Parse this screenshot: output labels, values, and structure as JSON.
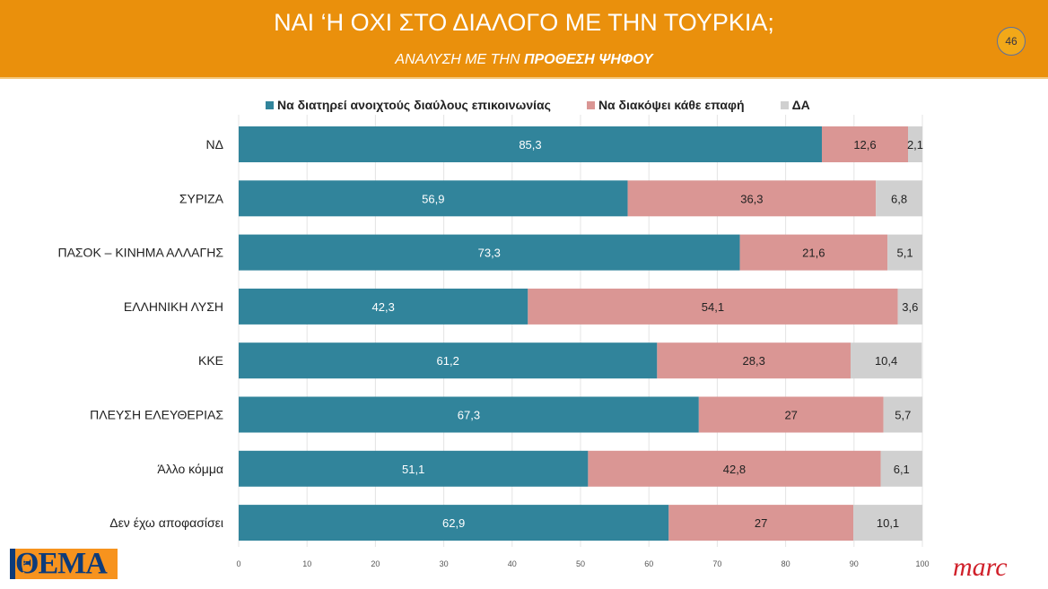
{
  "header": {
    "title": "ΝΑΙ ‘Η ΟΧΙ ΣΤΟ ΔΙΑΛΟΓΟ ΜΕ ΤΗΝ ΤΟΥΡΚΙΑ;",
    "subtitle_plain": "ΑΝΑΛΥΣΗ ΜΕ ΤΗΝ ",
    "subtitle_bold": "ΠΡΟΘΕΣΗ ΨΗΦΟΥ",
    "page_number": "46"
  },
  "logos": {
    "left": "ΠΡΩΤΟ ΘΕΜΑ",
    "right": "marc"
  },
  "chart_data": {
    "type": "bar",
    "orientation": "horizontal",
    "stacked": true,
    "categories": [
      "ΝΔ",
      "ΣΥΡΙΖΑ",
      "ΠΑΣΟΚ – ΚΙΝΗΜΑ ΑΛΛΑΓΗΣ",
      "ΕΛΛΗΝΙΚΗ ΛΥΣΗ",
      "ΚΚΕ",
      "ΠΛΕΥΣΗ ΕΛΕΥΘΕΡΙΑΣ",
      "Άλλο κόμμα",
      "Δεν έχω αποφασίσει"
    ],
    "series": [
      {
        "name": "Να διατηρεί ανοιχτούς διαύλους επικοινωνίας",
        "color": "#31849B",
        "values": [
          85.3,
          56.9,
          73.3,
          42.3,
          61.2,
          67.3,
          51.1,
          62.9
        ]
      },
      {
        "name": "Να διακόψει κάθε επαφή",
        "color": "#DA9694",
        "values": [
          12.6,
          36.3,
          21.6,
          54.1,
          28.3,
          27,
          42.8,
          27
        ]
      },
      {
        "name": "ΔΑ",
        "color": "#D0D0D0",
        "values": [
          2.1,
          6.8,
          5.1,
          3.6,
          10.4,
          5.7,
          6.1,
          10.1
        ]
      }
    ],
    "xlim": [
      0,
      100
    ],
    "xticks": [
      0,
      10,
      20,
      30,
      40,
      50,
      60,
      70,
      80,
      90,
      100
    ],
    "grid": true,
    "legend": "top"
  }
}
